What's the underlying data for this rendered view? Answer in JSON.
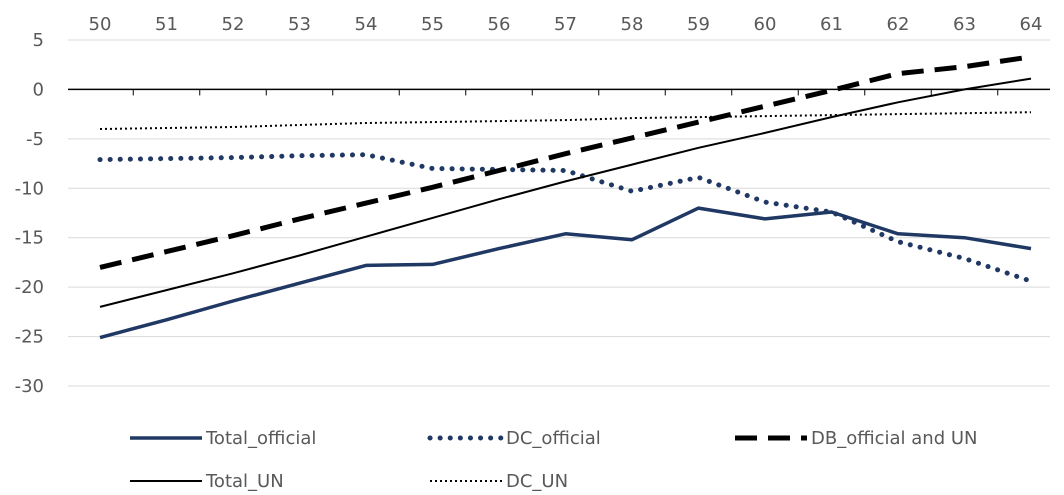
{
  "chart_data": {
    "type": "line",
    "x": [
      50,
      51,
      52,
      53,
      54,
      55,
      56,
      57,
      58,
      59,
      60,
      61,
      62,
      63,
      64
    ],
    "x_tick_labels": [
      "50",
      "51",
      "52",
      "53",
      "54",
      "55",
      "56",
      "57",
      "58",
      "59",
      "60",
      "61",
      "62",
      "63",
      "64"
    ],
    "y_tick_labels": [
      "5",
      "0",
      "-5",
      "-10",
      "-15",
      "-20",
      "-25",
      "-30"
    ],
    "y_ticks": [
      5,
      0,
      -5,
      -10,
      -15,
      -20,
      -25,
      -30
    ],
    "ylim": [
      -30,
      5
    ],
    "grid": true,
    "legend_placement": "bottom",
    "series": [
      {
        "name": "Total_official",
        "color": "#203864",
        "style": "solid-thick",
        "values": [
          -25.1,
          -23.3,
          -21.4,
          -19.6,
          -17.8,
          -17.7,
          -16.1,
          -14.6,
          -15.2,
          -12.0,
          -13.1,
          -12.4,
          -14.6,
          -15.0,
          -16.1
        ]
      },
      {
        "name": "DC_official",
        "color": "#203864",
        "style": "dotted-thick",
        "values": [
          -7.1,
          -7.0,
          -6.9,
          -6.7,
          -6.6,
          -8.0,
          -8.1,
          -8.2,
          -10.3,
          -8.9,
          -11.4,
          -12.4,
          -15.4,
          -17.1,
          -19.4
        ]
      },
      {
        "name": "DB_official and UN",
        "color": "#000000",
        "style": "dashed-thick",
        "values": [
          -18.0,
          -16.4,
          -14.8,
          -13.1,
          -11.5,
          -9.9,
          -8.2,
          -6.5,
          -4.9,
          -3.3,
          -1.7,
          -0.1,
          1.6,
          2.3,
          3.3
        ]
      },
      {
        "name": "Total_UN",
        "color": "#000000",
        "style": "solid-thin",
        "values": [
          -22.0,
          -20.3,
          -18.6,
          -16.8,
          -14.9,
          -13.0,
          -11.1,
          -9.3,
          -7.6,
          -5.9,
          -4.4,
          -2.8,
          -1.3,
          0.0,
          1.1
        ]
      },
      {
        "name": "DC_UN",
        "color": "#000000",
        "style": "dotted-thin",
        "values": [
          -4.0,
          -3.9,
          -3.8,
          -3.6,
          -3.4,
          -3.3,
          -3.2,
          -3.1,
          -2.9,
          -2.8,
          -2.7,
          -2.6,
          -2.5,
          -2.4,
          -2.3
        ]
      }
    ]
  }
}
